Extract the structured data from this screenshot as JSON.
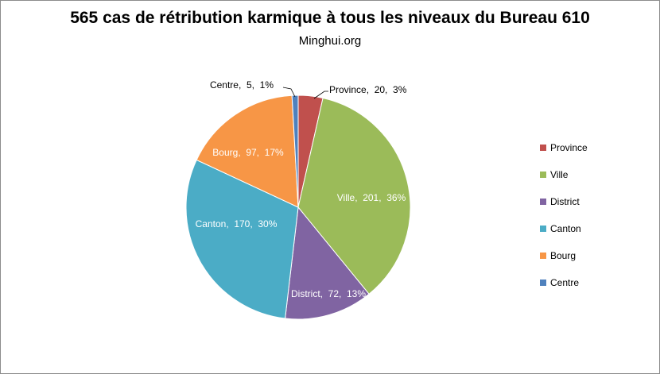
{
  "chart_data": {
    "type": "pie",
    "title": "565 cas de rétribution karmique à tous les niveaux du Bureau 610",
    "subtitle": "Minghui.org",
    "legend_position": "right",
    "slices": [
      {
        "name": "Province",
        "value": 20,
        "percent": "3%",
        "color": "#c0504d"
      },
      {
        "name": "Ville",
        "value": 201,
        "percent": "36%",
        "color": "#9bbb59"
      },
      {
        "name": "District",
        "value": 72,
        "percent": "13%",
        "color": "#8064a2"
      },
      {
        "name": "Canton",
        "value": 170,
        "percent": "30%",
        "color": "#4bacc6"
      },
      {
        "name": "Bourg",
        "value": 97,
        "percent": "17%",
        "color": "#f79646"
      },
      {
        "name": "Centre",
        "value": 5,
        "percent": "1%",
        "color": "#4f81bd"
      }
    ],
    "data_labels": [
      "Province,  20,  3%",
      "Ville,  201,  36%",
      "District,  72,  13%",
      "Canton,  170,  30%",
      "Bourg,  97,  17%",
      "Centre,  5,  1%"
    ]
  }
}
